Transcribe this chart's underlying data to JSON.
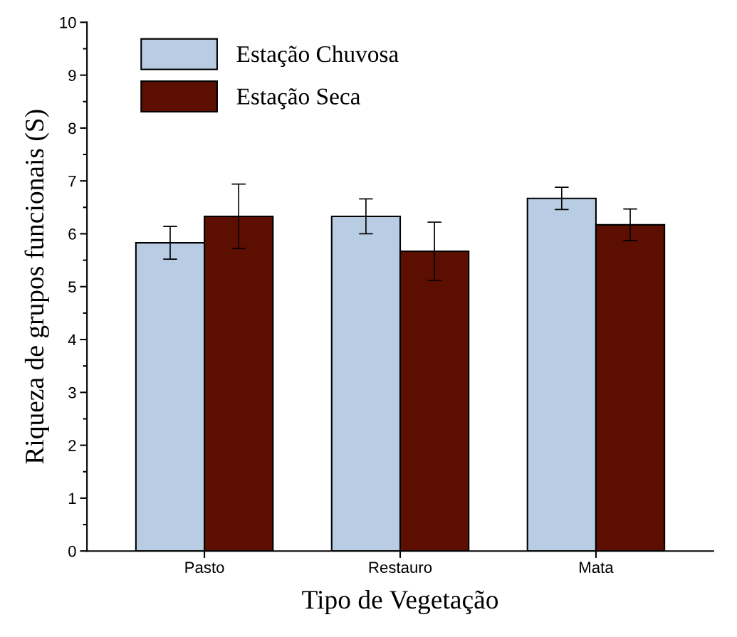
{
  "chart_data": {
    "type": "bar",
    "xlabel": "Tipo de Vegetação",
    "ylabel": "Riqueza de grupos funcionais (S)",
    "categories": [
      "Pasto",
      "Restauro",
      "Mata"
    ],
    "series": [
      {
        "name": "Estação Chuvosa",
        "color": "#b8cce4",
        "values": [
          5.83,
          6.33,
          6.67
        ],
        "errors": [
          0.31,
          0.33,
          0.21
        ]
      },
      {
        "name": "Estação Seca",
        "color": "#5c0f00",
        "values": [
          6.33,
          5.67,
          6.17
        ],
        "errors": [
          0.61,
          0.55,
          0.3
        ]
      }
    ],
    "ylim": [
      0,
      10
    ],
    "yticks": [
      0,
      1,
      2,
      3,
      4,
      5,
      6,
      7,
      8,
      9,
      10
    ],
    "legend": "top left",
    "grid": false
  }
}
